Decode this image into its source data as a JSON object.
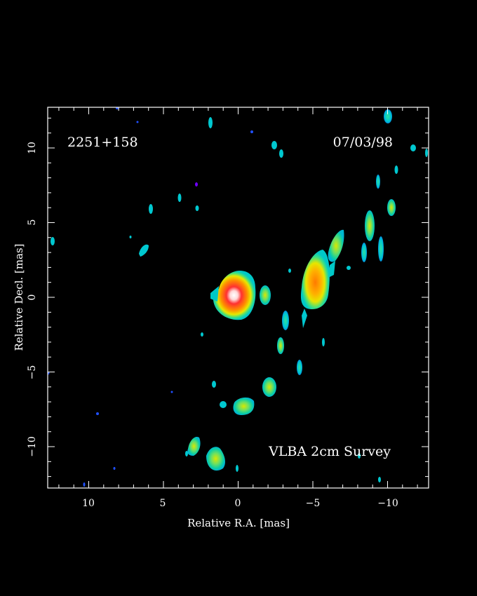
{
  "source_label": "2251+158",
  "date_label": "07/03/98",
  "survey_label": "VLBA 2cm Survey",
  "xlabel": "Relative R.A. [mas]",
  "ylabel": "Relative Decl. [mas]",
  "x_ticks": [
    "10",
    "5",
    "0",
    "−5",
    "−10"
  ],
  "y_ticks": [
    "10",
    "5",
    "0",
    "−5",
    "−10"
  ],
  "x_range_mas": [
    12.8,
    -12.8
  ],
  "y_range_mas": [
    -12.8,
    12.8
  ],
  "colors": {
    "background": "#000000",
    "frame": "#ffffff"
  }
}
